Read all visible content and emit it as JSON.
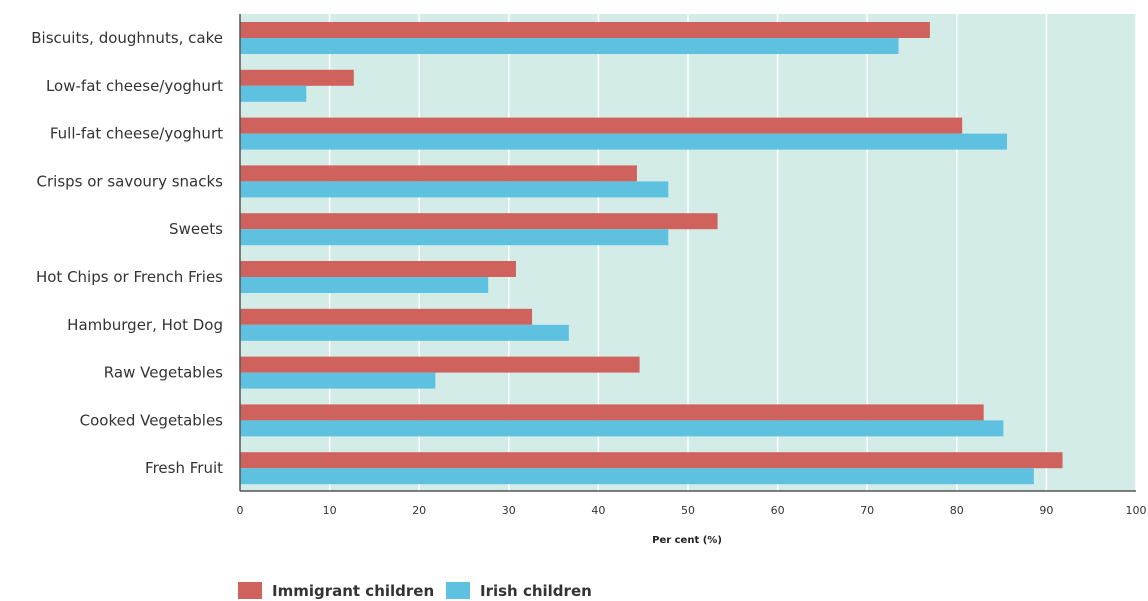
{
  "chart_data": {
    "type": "bar",
    "orientation": "horizontal",
    "categories": [
      "Biscuits, doughnuts, cake",
      "Low-fat cheese/yoghurt",
      "Full-fat cheese/yoghurt",
      "Crisps or savoury snacks",
      "Sweets",
      "Hot Chips or French Fries",
      "Hamburger, Hot Dog",
      "Raw Vegetables",
      "Cooked Vegetables",
      "Fresh Fruit"
    ],
    "series": [
      {
        "name": "Immigrant children",
        "color": "#d0625e",
        "values": [
          77,
          12.7,
          80.6,
          44.3,
          53.3,
          30.8,
          32.6,
          44.6,
          83,
          91.8
        ]
      },
      {
        "name": "Irish children",
        "color": "#5ec1e0",
        "values": [
          73.5,
          7.4,
          85.6,
          47.8,
          47.8,
          27.7,
          36.7,
          21.8,
          85.2,
          88.6
        ]
      }
    ],
    "title": "",
    "xlabel": "Per cent (%)",
    "ylabel": "",
    "xlim": [
      0,
      100
    ],
    "xticks": [
      0,
      10,
      20,
      30,
      40,
      50,
      60,
      70,
      80,
      90,
      100
    ],
    "grid": true,
    "legend_position": "bottom-left",
    "plot_background": "#d4ece8",
    "grid_color": "#ffffff"
  }
}
